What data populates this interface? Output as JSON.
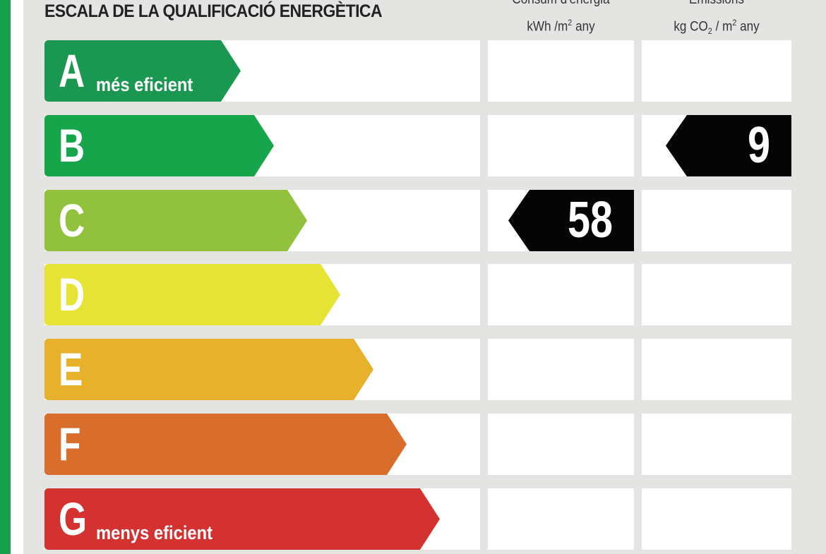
{
  "title": "ESCALA DE LA QUALIFICACIÓ ENERGÈTICA",
  "columns": {
    "consumption": {
      "label": "Consum d'energia",
      "unit_prefix": "kWh /m",
      "unit_sup": "2",
      "unit_suffix": " any"
    },
    "emissions": {
      "label": "Emissions",
      "unit_prefix": "kg CO",
      "unit_sub": "2",
      "unit_mid": " / m",
      "unit_sup": "2",
      "unit_suffix": " any"
    }
  },
  "classes": [
    {
      "letter": "A",
      "sub": "més eficient",
      "color": "#1a9750"
    },
    {
      "letter": "B",
      "sub": "",
      "color": "#16a54b"
    },
    {
      "letter": "C",
      "sub": "",
      "color": "#92c13e"
    },
    {
      "letter": "D",
      "sub": "",
      "color": "#e5e333"
    },
    {
      "letter": "E",
      "sub": "",
      "color": "#e8b12c"
    },
    {
      "letter": "F",
      "sub": "",
      "color": "#d96d2c"
    },
    {
      "letter": "G",
      "sub": "menys eficient",
      "color": "#d43131"
    }
  ],
  "rating": {
    "consumption": {
      "class": "C",
      "value": "58"
    },
    "emissions": {
      "class": "B",
      "value": "9"
    }
  },
  "colors": {
    "frame_green": "#16a04a",
    "panel_gray": "#e4e4e2",
    "badge": "#050505"
  }
}
